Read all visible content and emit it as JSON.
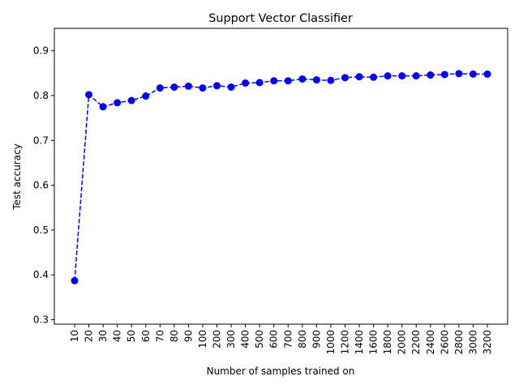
{
  "chart_data": {
    "type": "line",
    "title": "Support Vector Classifier",
    "xlabel": "Number of samples trained on",
    "ylabel": "Test accuracy",
    "categories": [
      "10",
      "20",
      "30",
      "40",
      "50",
      "60",
      "70",
      "80",
      "90",
      "100",
      "200",
      "300",
      "400",
      "500",
      "600",
      "700",
      "800",
      "900",
      "1000",
      "1200",
      "1400",
      "1600",
      "1800",
      "2000",
      "2200",
      "2400",
      "2600",
      "2800",
      "3000",
      "3200"
    ],
    "series": [
      {
        "values": [
          0.387,
          0.802,
          0.775,
          0.784,
          0.789,
          0.799,
          0.817,
          0.819,
          0.821,
          0.817,
          0.822,
          0.819,
          0.828,
          0.829,
          0.833,
          0.833,
          0.837,
          0.835,
          0.834,
          0.84,
          0.842,
          0.841,
          0.844,
          0.844,
          0.844,
          0.846,
          0.847,
          0.849,
          0.848,
          0.848
        ],
        "color": "#0000ff",
        "line_style": "dashed",
        "marker": "circle"
      }
    ],
    "ylim": [
      0.29,
      0.95
    ],
    "yticks": [
      0.3,
      0.4,
      0.5,
      0.6,
      0.7,
      0.8,
      0.9
    ],
    "grid": false,
    "legend": false
  }
}
